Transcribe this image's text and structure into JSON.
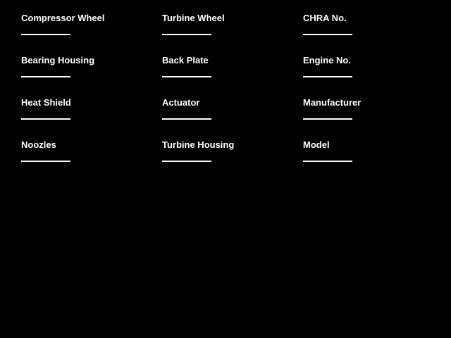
{
  "page": {
    "background_color": "#000000",
    "text_color": "#ffffff"
  },
  "form": {
    "fields": [
      {
        "label": "Compressor Wheel",
        "value": ""
      },
      {
        "label": "Turbine Wheel",
        "value": ""
      },
      {
        "label": "CHRA No.",
        "value": ""
      },
      {
        "label": "Bearing Housing",
        "value": ""
      },
      {
        "label": "Back Plate",
        "value": ""
      },
      {
        "label": "Engine No.",
        "value": ""
      },
      {
        "label": "Heat Shield",
        "value": ""
      },
      {
        "label": "Actuator",
        "value": ""
      },
      {
        "label": "Manufacturer",
        "value": ""
      },
      {
        "label": "Noozles",
        "value": ""
      },
      {
        "label": "Turbine Housing",
        "value": ""
      },
      {
        "label": "Model",
        "value": ""
      }
    ]
  }
}
